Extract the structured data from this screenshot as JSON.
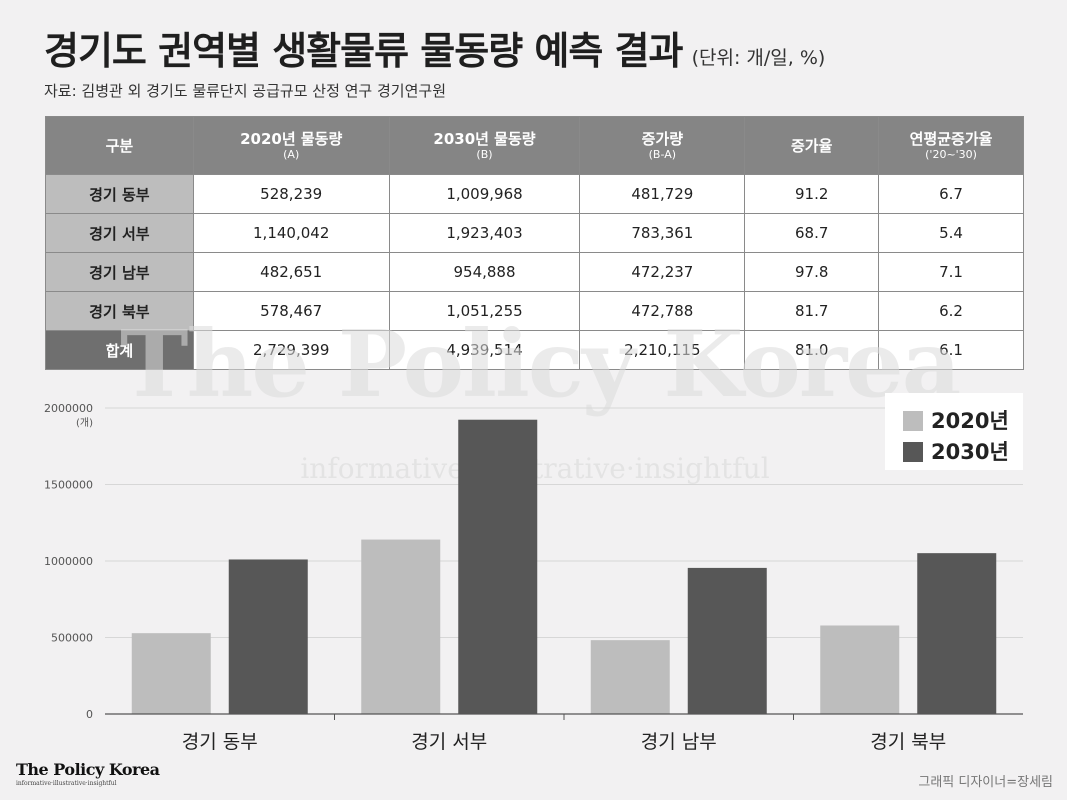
{
  "header": {
    "title": "경기도 권역별 생활물류 물동량 예측 결과",
    "unit": "(단위: 개/일, %)",
    "source": "자료: 김병관 외 경기도 물류단지 공급규모 산정 연구 경기연구원"
  },
  "table": {
    "columns": [
      {
        "label": "구분",
        "sub": ""
      },
      {
        "label": "2020년 물동량",
        "sub": "(A)"
      },
      {
        "label": "2030년 물동량",
        "sub": "(B)"
      },
      {
        "label": "증가량",
        "sub": "(B-A)"
      },
      {
        "label": "증가율",
        "sub": ""
      },
      {
        "label": "연평균증가율",
        "sub": "('20~'30)"
      }
    ],
    "rows": [
      [
        "경기 동부",
        "528,239",
        "1,009,968",
        "481,729",
        "91.2",
        "6.7"
      ],
      [
        "경기 서부",
        "1,140,042",
        "1,923,403",
        "783,361",
        "68.7",
        "5.4"
      ],
      [
        "경기 남부",
        "482,651",
        "954,888",
        "472,237",
        "97.8",
        "7.1"
      ],
      [
        "경기 북부",
        "578,467",
        "1,051,255",
        "472,788",
        "81.7",
        "6.2"
      ],
      [
        "합계",
        "2,729,399",
        "4,939,514",
        "2,210,115",
        "81.0",
        "6.1"
      ]
    ]
  },
  "watermark": {
    "brand": "The Policy Korea",
    "tagline": "informative·illustrative·insightful"
  },
  "chart_data": {
    "type": "bar",
    "categories": [
      "경기 동부",
      "경기 서부",
      "경기 남부",
      "경기 북부"
    ],
    "series": [
      {
        "name": "2020년",
        "values": [
          528239,
          1140042,
          482651,
          578467
        ],
        "color": "#bdbdbd"
      },
      {
        "name": "2030년",
        "values": [
          1009968,
          1923403,
          954888,
          1051255
        ],
        "color": "#575757"
      }
    ],
    "ylim": [
      0,
      2000000
    ],
    "yticks": [
      "0",
      "500000",
      "1000000",
      "1500000",
      "2000000"
    ],
    "ylabel": "(개)",
    "grid": true,
    "legend_position": "top-right"
  },
  "footer": {
    "logo": "The Policy Korea",
    "logo_tagline": "informative·illustrative·insightful",
    "credit": "그래픽 디자이너=장세림"
  }
}
